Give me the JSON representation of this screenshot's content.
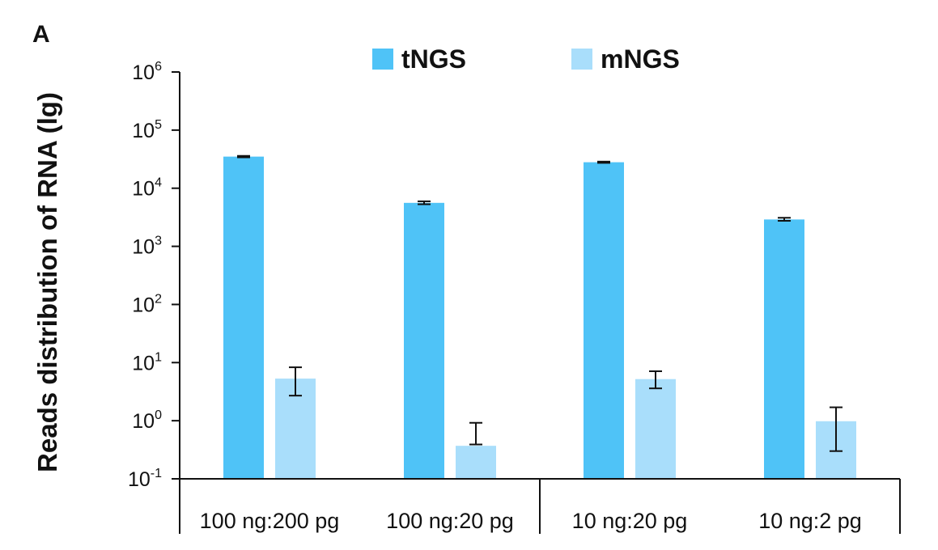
{
  "panel_label": "A",
  "colors": {
    "tNGS": "#4FC3F7",
    "mNGS": "#A9DEFB",
    "axis": "#111111"
  },
  "chart_data": {
    "type": "bar",
    "ylabel": "Reads distribution of RNA (lg)",
    "xlabel": "",
    "yscale": "log",
    "ylim": [
      0.1,
      1000000
    ],
    "yticks": [
      {
        "base": "10",
        "exp": "-1",
        "value": 0.1
      },
      {
        "base": "10",
        "exp": "0",
        "value": 1
      },
      {
        "base": "10",
        "exp": "1",
        "value": 10
      },
      {
        "base": "10",
        "exp": "2",
        "value": 100
      },
      {
        "base": "10",
        "exp": "3",
        "value": 1000
      },
      {
        "base": "10",
        "exp": "4",
        "value": 10000
      },
      {
        "base": "10",
        "exp": "5",
        "value": 100000
      },
      {
        "base": "10",
        "exp": "6",
        "value": 1000000
      }
    ],
    "categories": [
      "100 ng:200 pg",
      "100 ng:20 pg",
      "10 ng:20 pg",
      "10 ng:2 pg"
    ],
    "legend_position": "top",
    "series": [
      {
        "name": "tNGS",
        "values": [
          35000,
          5600,
          28000,
          2900
        ],
        "err_low": [
          34000,
          5300,
          27300,
          2750
        ],
        "err_high": [
          36000,
          5950,
          28700,
          3100
        ]
      },
      {
        "name": "mNGS",
        "values": [
          5.3,
          0.37,
          5.2,
          0.98
        ],
        "err_low": [
          2.7,
          0.39,
          3.6,
          0.3
        ],
        "err_high": [
          8.3,
          0.92,
          7.1,
          1.7
        ]
      }
    ]
  }
}
